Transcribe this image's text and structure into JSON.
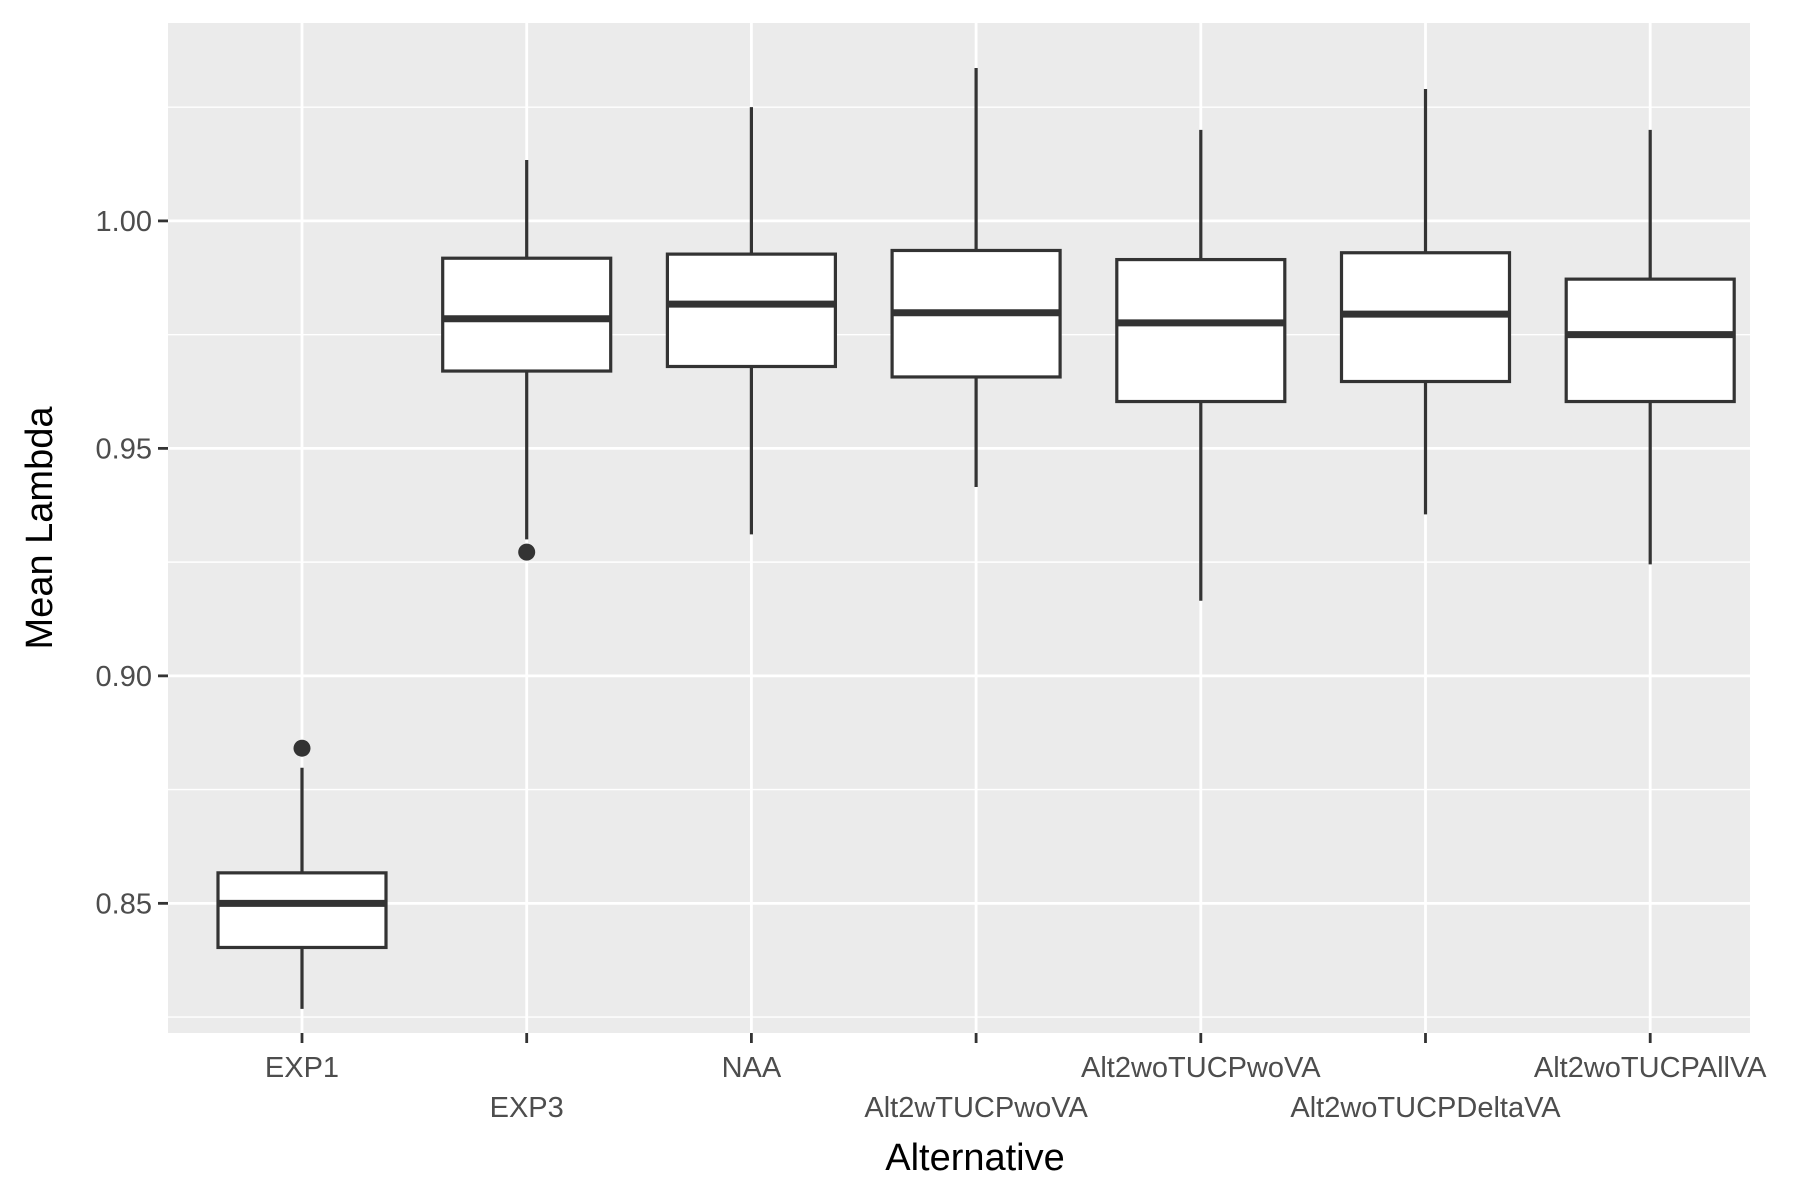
{
  "chart_data": {
    "type": "boxplot",
    "xlabel": "Alternative",
    "ylabel": "Mean Lambda",
    "ylim": [
      0.8215,
      1.0435
    ],
    "y_major_ticks": [
      0.85,
      0.9,
      0.95,
      1.0
    ],
    "y_tick_labels": [
      "0.85",
      "0.90",
      "0.95",
      "1.00"
    ],
    "y_minor_ticks": [
      0.825,
      0.875,
      0.925,
      0.975,
      1.025
    ],
    "grid": true,
    "legend": "none",
    "categories": [
      "EXP1",
      "EXP3",
      "NAA",
      "Alt2wTUCPwoVA",
      "Alt2woTUCPwoVA",
      "Alt2woTUCPDeltaVA",
      "Alt2woTUCPAllVA"
    ],
    "boxes": [
      {
        "category": "EXP1",
        "whisker_low": 0.8268,
        "q1": 0.8403,
        "median": 0.85,
        "q3": 0.8567,
        "whisker_high": 0.8798,
        "outliers": [
          0.8841
        ]
      },
      {
        "category": "EXP3",
        "whisker_low": 0.93,
        "q1": 0.967,
        "median": 0.9785,
        "q3": 0.9918,
        "whisker_high": 1.0134,
        "outliers": [
          0.9272
        ]
      },
      {
        "category": "NAA",
        "whisker_low": 0.9311,
        "q1": 0.968,
        "median": 0.9817,
        "q3": 0.9927,
        "whisker_high": 1.025,
        "outliers": []
      },
      {
        "category": "Alt2wTUCPwoVA",
        "whisker_low": 0.9415,
        "q1": 0.9657,
        "median": 0.9798,
        "q3": 0.9935,
        "whisker_high": 1.0336,
        "outliers": []
      },
      {
        "category": "Alt2woTUCPwoVA",
        "whisker_low": 0.9165,
        "q1": 0.9603,
        "median": 0.9776,
        "q3": 0.9915,
        "whisker_high": 1.02,
        "outliers": []
      },
      {
        "category": "Alt2woTUCPDeltaVA",
        "whisker_low": 0.9355,
        "q1": 0.9647,
        "median": 0.9795,
        "q3": 0.993,
        "whisker_high": 1.029,
        "outliers": []
      },
      {
        "category": "Alt2woTUCPAllVA",
        "whisker_low": 0.9245,
        "q1": 0.9603,
        "median": 0.975,
        "q3": 0.9872,
        "whisker_high": 1.02,
        "outliers": []
      }
    ],
    "colors": {
      "panel": "#ebebeb",
      "grid": "#ffffff",
      "box_fill": "#ffffff",
      "box_stroke": "#333333",
      "outlier": "#333333",
      "tick": "#333333"
    }
  }
}
